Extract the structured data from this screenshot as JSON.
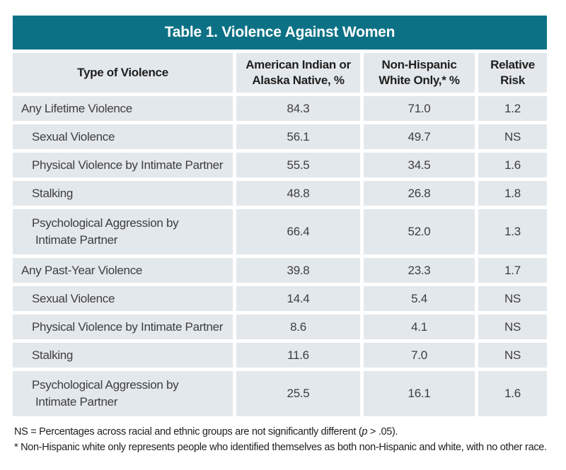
{
  "table": {
    "title": "Table 1. Violence Against Women",
    "columns": [
      "Type of Violence",
      "American Indian or Alaska Native, %",
      "Non-Hispanic White Only,* %",
      "Relative Risk"
    ],
    "rows": [
      {
        "label": "Any Lifetime Violence",
        "label2": "",
        "level": 0,
        "values": [
          "84.3",
          "71.0",
          "1.2"
        ]
      },
      {
        "label": "Sexual Violence",
        "label2": "",
        "level": 1,
        "values": [
          "56.1",
          "49.7",
          "NS"
        ]
      },
      {
        "label": "Physical Violence by Intimate Partner",
        "label2": "",
        "level": 1,
        "values": [
          "55.5",
          "34.5",
          "1.6"
        ]
      },
      {
        "label": "Stalking",
        "label2": "",
        "level": 1,
        "values": [
          "48.8",
          "26.8",
          "1.8"
        ]
      },
      {
        "label": "Psychological Aggression by",
        "label2": "Intimate Partner",
        "level": 1,
        "values": [
          "66.4",
          "52.0",
          "1.3"
        ]
      },
      {
        "label": "Any Past-Year Violence",
        "label2": "",
        "level": 0,
        "values": [
          "39.8",
          "23.3",
          "1.7"
        ]
      },
      {
        "label": "Sexual Violence",
        "label2": "",
        "level": 1,
        "values": [
          "14.4",
          "5.4",
          "NS"
        ]
      },
      {
        "label": "Physical Violence by Intimate Partner",
        "label2": "",
        "level": 1,
        "values": [
          "8.6",
          "4.1",
          "NS"
        ]
      },
      {
        "label": "Stalking",
        "label2": "",
        "level": 1,
        "values": [
          "11.6",
          "7.0",
          "NS"
        ]
      },
      {
        "label": "Psychological Aggression by",
        "label2": "Intimate Partner",
        "level": 1,
        "values": [
          "25.5",
          "16.1",
          "1.6"
        ]
      }
    ]
  },
  "notes": {
    "ns": {
      "pre": "NS = Percentages across racial and ethnic groups are not significantly different (",
      "italic": "p",
      "post": " > .05)."
    },
    "asterisk": "* Non-Hispanic white only represents people who identified themselves as both non-Hispanic and white, with no other race."
  },
  "colors": {
    "title_bar": "#0D7186",
    "cell_background": "#E3E8EC",
    "title_text": "#FFFFFF",
    "body_text": "#3E3E3E"
  },
  "chart_data": {
    "type": "table",
    "title": "Table 1. Violence Against Women",
    "columns": [
      "Type of Violence",
      "American Indian or Alaska Native, %",
      "Non-Hispanic White Only,* %",
      "Relative Risk"
    ],
    "categories": [
      "Any Lifetime Violence",
      "Sexual Violence (lifetime)",
      "Physical Violence by Intimate Partner (lifetime)",
      "Stalking (lifetime)",
      "Psychological Aggression by Intimate Partner (lifetime)",
      "Any Past-Year Violence",
      "Sexual Violence (past-year)",
      "Physical Violence by Intimate Partner (past-year)",
      "Stalking (past-year)",
      "Psychological Aggression by Intimate Partner (past-year)"
    ],
    "series": [
      {
        "name": "American Indian or Alaska Native, %",
        "values": [
          84.3,
          56.1,
          55.5,
          48.8,
          66.4,
          39.8,
          14.4,
          8.6,
          11.6,
          25.5
        ]
      },
      {
        "name": "Non-Hispanic White Only, %",
        "values": [
          71.0,
          49.7,
          34.5,
          26.8,
          52.0,
          23.3,
          5.4,
          4.1,
          7.0,
          16.1
        ]
      },
      {
        "name": "Relative Risk",
        "values": [
          "1.2",
          "NS",
          "1.6",
          "1.8",
          "1.3",
          "1.7",
          "NS",
          "NS",
          "NS",
          "1.6"
        ]
      }
    ]
  }
}
